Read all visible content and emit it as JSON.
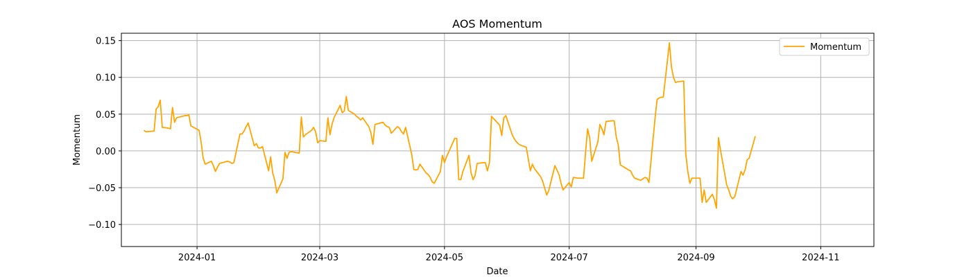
{
  "chart_data": {
    "type": "line",
    "title": "AOS Momentum",
    "xlabel": "Date",
    "ylabel": "Momentum",
    "grid": true,
    "legend_position": "top-right",
    "x_range": [
      "2023-11-25",
      "2024-11-27"
    ],
    "ylim": [
      -0.13,
      0.16
    ],
    "x_ticks": [
      "2024-01-01",
      "2024-03-01",
      "2024-05-01",
      "2024-07-01",
      "2024-09-01",
      "2024-11-01"
    ],
    "x_tick_labels": [
      "2024-01",
      "2024-03",
      "2024-05",
      "2024-07",
      "2024-09",
      "2024-11"
    ],
    "y_ticks": [
      -0.1,
      -0.05,
      0.0,
      0.05,
      0.1,
      0.15
    ],
    "y_tick_labels": [
      "−0.10",
      "−0.05",
      "0.00",
      "0.05",
      "0.10",
      "0.15"
    ],
    "series": [
      {
        "name": "Momentum",
        "color": "#ffa500",
        "points": [
          [
            "2023-12-06",
            0.028
          ],
          [
            "2023-12-07",
            0.026
          ],
          [
            "2023-12-11",
            0.027
          ],
          [
            "2023-12-12",
            0.057
          ],
          [
            "2023-12-13",
            0.06
          ],
          [
            "2023-12-14",
            0.069
          ],
          [
            "2023-12-15",
            0.032
          ],
          [
            "2023-12-18",
            0.031
          ],
          [
            "2023-12-19",
            0.03
          ],
          [
            "2023-12-20",
            0.059
          ],
          [
            "2023-12-21",
            0.039
          ],
          [
            "2023-12-22",
            0.045
          ],
          [
            "2023-12-26",
            0.048
          ],
          [
            "2023-12-27",
            0.048
          ],
          [
            "2023-12-28",
            0.049
          ],
          [
            "2023-12-29",
            0.034
          ],
          [
            "2024-01-02",
            0.028
          ],
          [
            "2024-01-03",
            0.012
          ],
          [
            "2024-01-04",
            -0.01
          ],
          [
            "2024-01-05",
            -0.018
          ],
          [
            "2024-01-08",
            -0.014
          ],
          [
            "2024-01-09",
            -0.02
          ],
          [
            "2024-01-10",
            -0.028
          ],
          [
            "2024-01-11",
            -0.022
          ],
          [
            "2024-01-12",
            -0.017
          ],
          [
            "2024-01-16",
            -0.014
          ],
          [
            "2024-01-17",
            -0.015
          ],
          [
            "2024-01-18",
            -0.017
          ],
          [
            "2024-01-19",
            -0.016
          ],
          [
            "2024-01-22",
            0.023
          ],
          [
            "2024-01-23",
            0.023
          ],
          [
            "2024-01-24",
            0.027
          ],
          [
            "2024-01-25",
            0.033
          ],
          [
            "2024-01-26",
            0.038
          ],
          [
            "2024-01-29",
            0.007
          ],
          [
            "2024-01-30",
            0.01
          ],
          [
            "2024-01-31",
            0.004
          ],
          [
            "2024-02-01",
            0.004
          ],
          [
            "2024-02-02",
            0.006
          ],
          [
            "2024-02-05",
            -0.027
          ],
          [
            "2024-02-06",
            -0.008
          ],
          [
            "2024-02-07",
            -0.03
          ],
          [
            "2024-02-08",
            -0.04
          ],
          [
            "2024-02-09",
            -0.057
          ],
          [
            "2024-02-12",
            -0.038
          ],
          [
            "2024-02-13",
            -0.002
          ],
          [
            "2024-02-14",
            -0.01
          ],
          [
            "2024-02-15",
            -0.002
          ],
          [
            "2024-02-16",
            -0.001
          ],
          [
            "2024-02-20",
            -0.003
          ],
          [
            "2024-02-21",
            0.046
          ],
          [
            "2024-02-22",
            0.019
          ],
          [
            "2024-02-23",
            0.022
          ],
          [
            "2024-02-26",
            0.028
          ],
          [
            "2024-02-27",
            0.032
          ],
          [
            "2024-02-28",
            0.026
          ],
          [
            "2024-02-29",
            0.011
          ],
          [
            "2024-03-01",
            0.014
          ],
          [
            "2024-03-04",
            0.013
          ],
          [
            "2024-03-05",
            0.045
          ],
          [
            "2024-03-06",
            0.022
          ],
          [
            "2024-03-07",
            0.036
          ],
          [
            "2024-03-08",
            0.045
          ],
          [
            "2024-03-11",
            0.062
          ],
          [
            "2024-03-12",
            0.052
          ],
          [
            "2024-03-13",
            0.054
          ],
          [
            "2024-03-14",
            0.074
          ],
          [
            "2024-03-15",
            0.055
          ],
          [
            "2024-03-18",
            0.05
          ],
          [
            "2024-03-19",
            0.047
          ],
          [
            "2024-03-20",
            0.045
          ],
          [
            "2024-03-21",
            0.042
          ],
          [
            "2024-03-22",
            0.045
          ],
          [
            "2024-03-25",
            0.033
          ],
          [
            "2024-03-26",
            0.025
          ],
          [
            "2024-03-27",
            0.009
          ],
          [
            "2024-03-28",
            0.036
          ],
          [
            "2024-04-01",
            0.039
          ],
          [
            "2024-04-02",
            0.035
          ],
          [
            "2024-04-03",
            0.033
          ],
          [
            "2024-04-04",
            0.032
          ],
          [
            "2024-04-05",
            0.024
          ],
          [
            "2024-04-08",
            0.033
          ],
          [
            "2024-04-09",
            0.031
          ],
          [
            "2024-04-10",
            0.026
          ],
          [
            "2024-04-11",
            0.023
          ],
          [
            "2024-04-12",
            0.032
          ],
          [
            "2024-04-15",
            -0.005
          ],
          [
            "2024-04-16",
            -0.025
          ],
          [
            "2024-04-17",
            -0.026
          ],
          [
            "2024-04-18",
            -0.025
          ],
          [
            "2024-04-19",
            -0.018
          ],
          [
            "2024-04-22",
            -0.03
          ],
          [
            "2024-04-23",
            -0.032
          ],
          [
            "2024-04-24",
            -0.036
          ],
          [
            "2024-04-25",
            -0.042
          ],
          [
            "2024-04-26",
            -0.044
          ],
          [
            "2024-04-29",
            -0.028
          ],
          [
            "2024-04-30",
            -0.006
          ],
          [
            "2024-05-01",
            -0.016
          ],
          [
            "2024-05-02",
            -0.008
          ],
          [
            "2024-05-03",
            -0.002
          ],
          [
            "2024-05-06",
            0.017
          ],
          [
            "2024-05-07",
            0.017
          ],
          [
            "2024-05-08",
            -0.039
          ],
          [
            "2024-05-09",
            -0.039
          ],
          [
            "2024-05-10",
            -0.028
          ],
          [
            "2024-05-13",
            -0.006
          ],
          [
            "2024-05-14",
            -0.03
          ],
          [
            "2024-05-15",
            -0.039
          ],
          [
            "2024-05-16",
            -0.033
          ],
          [
            "2024-05-17",
            -0.017
          ],
          [
            "2024-05-20",
            -0.016
          ],
          [
            "2024-05-21",
            -0.016
          ],
          [
            "2024-05-22",
            -0.027
          ],
          [
            "2024-05-23",
            -0.016
          ],
          [
            "2024-05-24",
            0.047
          ],
          [
            "2024-05-28",
            0.035
          ],
          [
            "2024-05-29",
            0.021
          ],
          [
            "2024-05-30",
            0.045
          ],
          [
            "2024-05-31",
            0.048
          ],
          [
            "2024-06-03",
            0.023
          ],
          [
            "2024-06-04",
            0.017
          ],
          [
            "2024-06-05",
            0.013
          ],
          [
            "2024-06-06",
            0.01
          ],
          [
            "2024-06-07",
            0.008
          ],
          [
            "2024-06-10",
            0.005
          ],
          [
            "2024-06-11",
            -0.011
          ],
          [
            "2024-06-12",
            -0.027
          ],
          [
            "2024-06-13",
            -0.018
          ],
          [
            "2024-06-14",
            -0.024
          ],
          [
            "2024-06-17",
            -0.035
          ],
          [
            "2024-06-18",
            -0.041
          ],
          [
            "2024-06-20",
            -0.06
          ],
          [
            "2024-06-21",
            -0.054
          ],
          [
            "2024-06-24",
            -0.02
          ],
          [
            "2024-06-25",
            -0.026
          ],
          [
            "2024-06-26",
            -0.032
          ],
          [
            "2024-06-27",
            -0.044
          ],
          [
            "2024-06-28",
            -0.053
          ],
          [
            "2024-07-01",
            -0.043
          ],
          [
            "2024-07-02",
            -0.049
          ],
          [
            "2024-07-03",
            -0.036
          ],
          [
            "2024-07-05",
            -0.037
          ],
          [
            "2024-07-08",
            -0.037
          ],
          [
            "2024-07-09",
            -0.002
          ],
          [
            "2024-07-10",
            0.03
          ],
          [
            "2024-07-11",
            0.018
          ],
          [
            "2024-07-12",
            -0.014
          ],
          [
            "2024-07-15",
            0.012
          ],
          [
            "2024-07-16",
            0.036
          ],
          [
            "2024-07-17",
            0.03
          ],
          [
            "2024-07-18",
            0.022
          ],
          [
            "2024-07-19",
            0.04
          ],
          [
            "2024-07-22",
            0.041
          ],
          [
            "2024-07-23",
            0.041
          ],
          [
            "2024-07-24",
            0.019
          ],
          [
            "2024-07-25",
            0.008
          ],
          [
            "2024-07-26",
            -0.019
          ],
          [
            "2024-07-29",
            -0.024
          ],
          [
            "2024-07-30",
            -0.026
          ],
          [
            "2024-07-31",
            -0.027
          ],
          [
            "2024-08-01",
            -0.033
          ],
          [
            "2024-08-02",
            -0.037
          ],
          [
            "2024-08-05",
            -0.04
          ],
          [
            "2024-08-06",
            -0.038
          ],
          [
            "2024-08-07",
            -0.036
          ],
          [
            "2024-08-08",
            -0.037
          ],
          [
            "2024-08-09",
            -0.043
          ],
          [
            "2024-08-12",
            0.045
          ],
          [
            "2024-08-13",
            0.07
          ],
          [
            "2024-08-14",
            0.072
          ],
          [
            "2024-08-15",
            0.073
          ],
          [
            "2024-08-16",
            0.073
          ],
          [
            "2024-08-19",
            0.147
          ],
          [
            "2024-08-20",
            0.114
          ],
          [
            "2024-08-21",
            0.1
          ],
          [
            "2024-08-22",
            0.093
          ],
          [
            "2024-08-23",
            0.094
          ],
          [
            "2024-08-26",
            0.095
          ],
          [
            "2024-08-27",
            -0.004
          ],
          [
            "2024-08-28",
            -0.028
          ],
          [
            "2024-08-29",
            -0.044
          ],
          [
            "2024-08-30",
            -0.037
          ],
          [
            "2024-09-03",
            -0.037
          ],
          [
            "2024-09-04",
            -0.07
          ],
          [
            "2024-09-05",
            -0.053
          ],
          [
            "2024-09-06",
            -0.07
          ],
          [
            "2024-09-09",
            -0.059
          ],
          [
            "2024-09-10",
            -0.066
          ],
          [
            "2024-09-11",
            -0.078
          ],
          [
            "2024-09-12",
            0.018
          ],
          [
            "2024-09-13",
            0.001
          ],
          [
            "2024-09-16",
            -0.046
          ],
          [
            "2024-09-17",
            -0.053
          ],
          [
            "2024-09-18",
            -0.062
          ],
          [
            "2024-09-19",
            -0.065
          ],
          [
            "2024-09-20",
            -0.062
          ],
          [
            "2024-09-23",
            -0.028
          ],
          [
            "2024-09-24",
            -0.033
          ],
          [
            "2024-09-25",
            -0.026
          ],
          [
            "2024-09-26",
            -0.012
          ],
          [
            "2024-09-27",
            -0.01
          ],
          [
            "2024-09-30",
            0.02
          ]
        ]
      }
    ]
  }
}
